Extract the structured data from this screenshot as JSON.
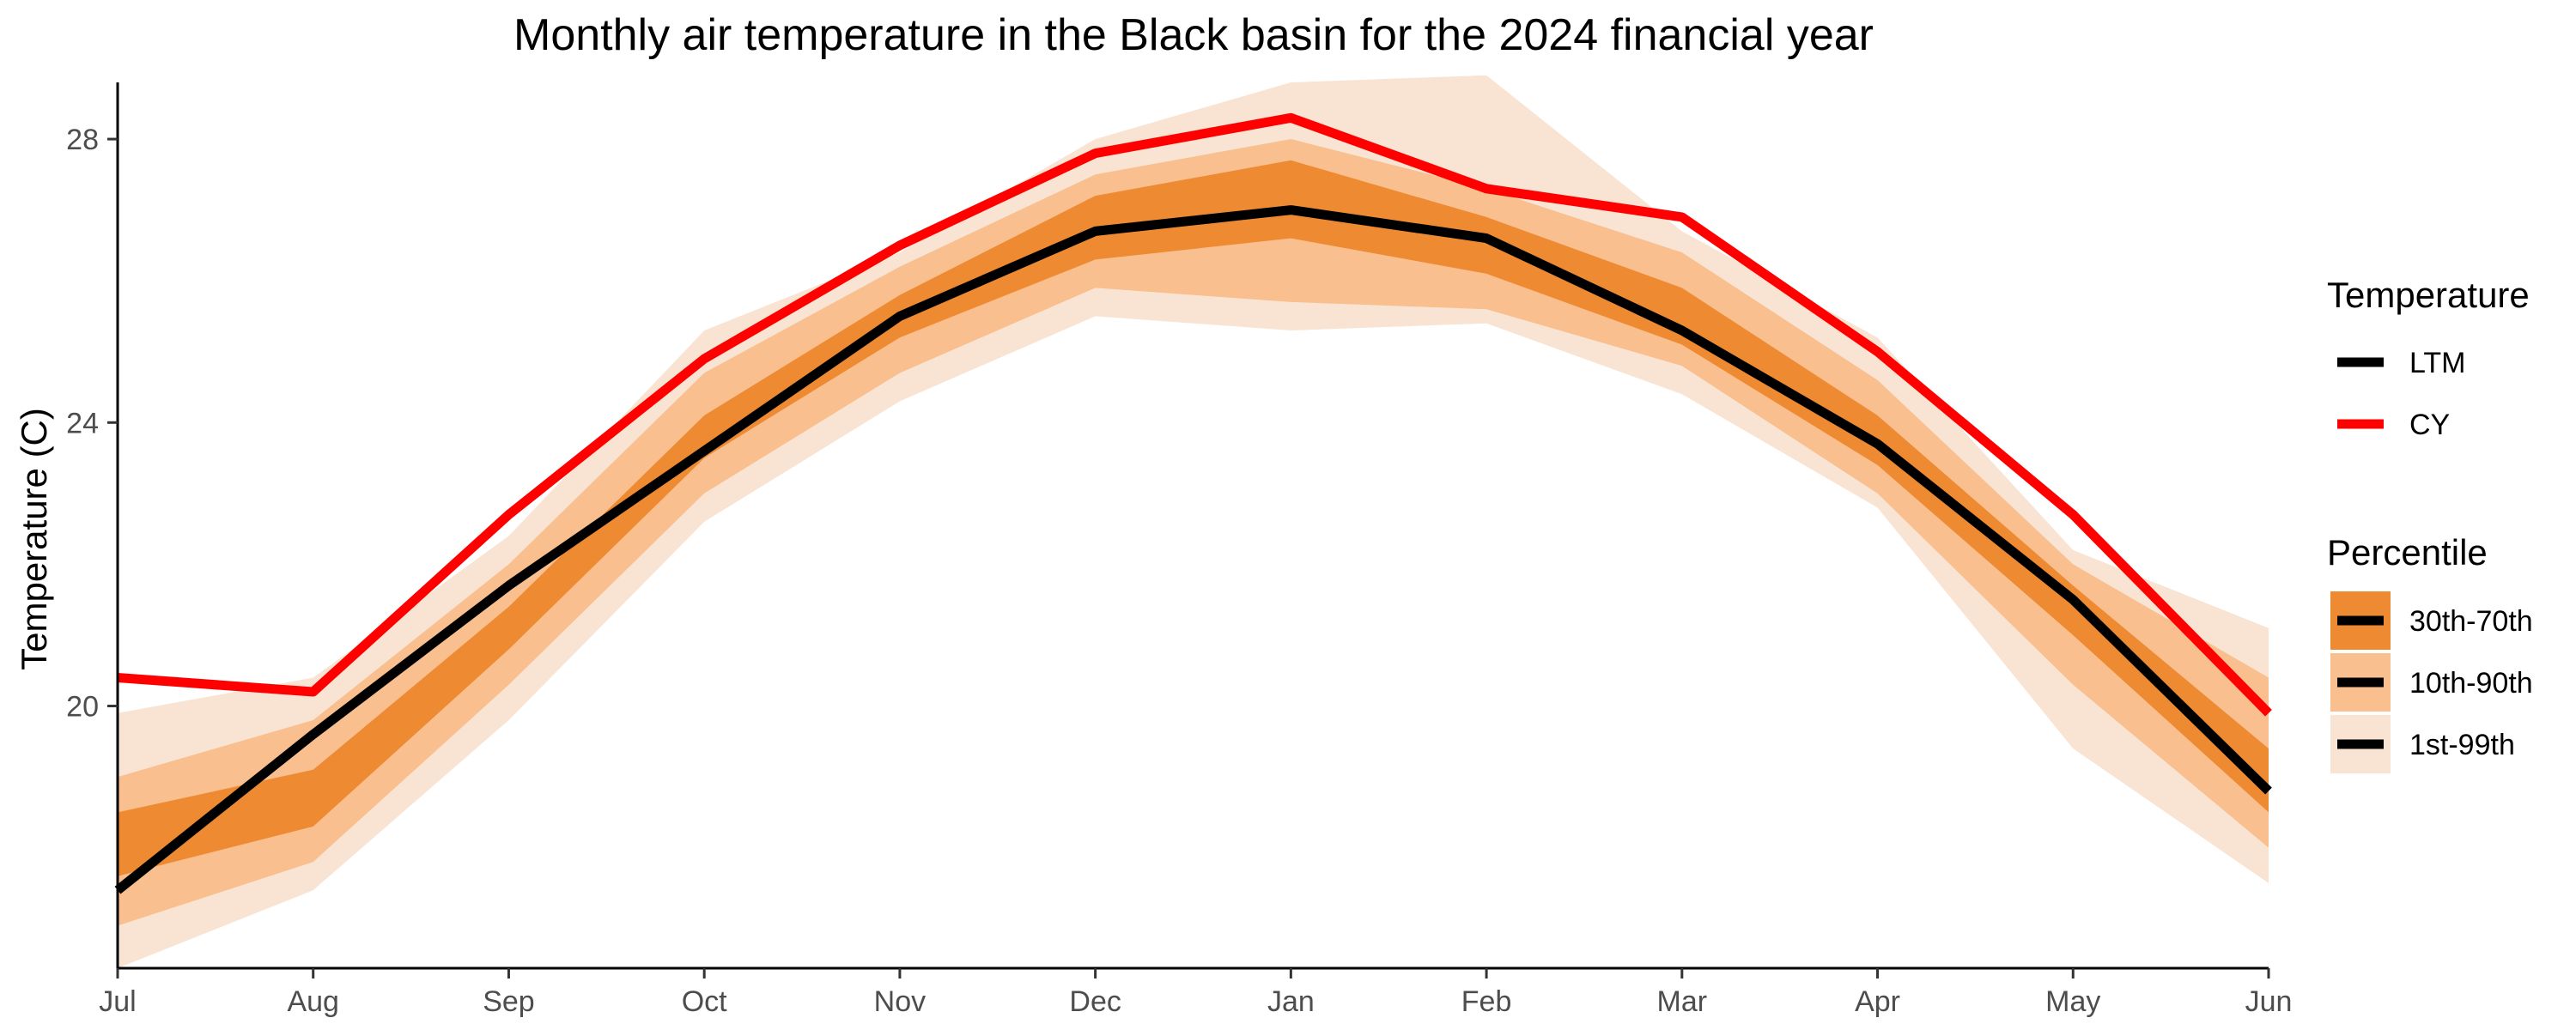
{
  "chart_data": {
    "type": "area",
    "title": "Monthly air temperature in the Black basin for the 2024 financial year",
    "xlabel": "",
    "ylabel": "Temperature (C)",
    "categories": [
      "Jul",
      "Aug",
      "Sep",
      "Oct",
      "Nov",
      "Dec",
      "Jan",
      "Feb",
      "Mar",
      "Apr",
      "May",
      "Jun"
    ],
    "ylim": [
      16.3,
      28.8
    ],
    "yticks": [
      20,
      24,
      28
    ],
    "grid": false,
    "legend_position": "right",
    "series": [
      {
        "name": "LTM",
        "color": "#000000",
        "values": [
          17.4,
          19.6,
          21.7,
          23.6,
          25.5,
          26.7,
          27.0,
          26.6,
          25.3,
          23.7,
          21.5,
          18.8
        ]
      },
      {
        "name": "CY",
        "color": "#ff0000",
        "values": [
          20.4,
          20.2,
          22.7,
          24.9,
          26.5,
          27.8,
          28.3,
          27.3,
          26.9,
          25.0,
          22.7,
          19.9
        ]
      }
    ],
    "bands": [
      {
        "name": "1st-99th",
        "color": "#f9e4d3",
        "low": [
          16.3,
          17.4,
          19.8,
          22.6,
          24.3,
          25.5,
          25.3,
          25.4,
          24.4,
          22.8,
          19.4,
          17.5
        ],
        "high": [
          19.9,
          20.4,
          22.4,
          25.3,
          26.4,
          28.0,
          28.8,
          28.9,
          26.7,
          25.2,
          22.2,
          21.1
        ]
      },
      {
        "name": "10th-90th",
        "color": "#f9bf8e",
        "low": [
          16.9,
          17.8,
          20.3,
          23.0,
          24.7,
          25.9,
          25.7,
          25.6,
          24.8,
          23.0,
          20.3,
          18.0
        ],
        "high": [
          19.0,
          19.8,
          22.0,
          24.7,
          26.2,
          27.5,
          28.0,
          27.3,
          26.4,
          24.6,
          22.0,
          20.4
        ]
      },
      {
        "name": "30th-70th",
        "color": "#ee8a32",
        "low": [
          17.6,
          18.3,
          20.8,
          23.5,
          25.2,
          26.3,
          26.6,
          26.1,
          25.1,
          23.4,
          21.0,
          18.5
        ],
        "high": [
          18.5,
          19.1,
          21.4,
          24.1,
          25.8,
          27.2,
          27.7,
          26.9,
          25.9,
          24.1,
          21.7,
          19.4
        ]
      }
    ],
    "legend": {
      "temperature_title": "Temperature",
      "temperature_items": [
        {
          "label": "LTM",
          "color": "#000000"
        },
        {
          "label": "CY",
          "color": "#ff0000"
        }
      ],
      "percentile_title": "Percentile",
      "percentile_items": [
        {
          "label": "30th-70th",
          "color": "#ee8a32"
        },
        {
          "label": "10th-90th",
          "color": "#f9bf8e"
        },
        {
          "label": "1st-99th",
          "color": "#f9e4d3"
        }
      ]
    }
  }
}
